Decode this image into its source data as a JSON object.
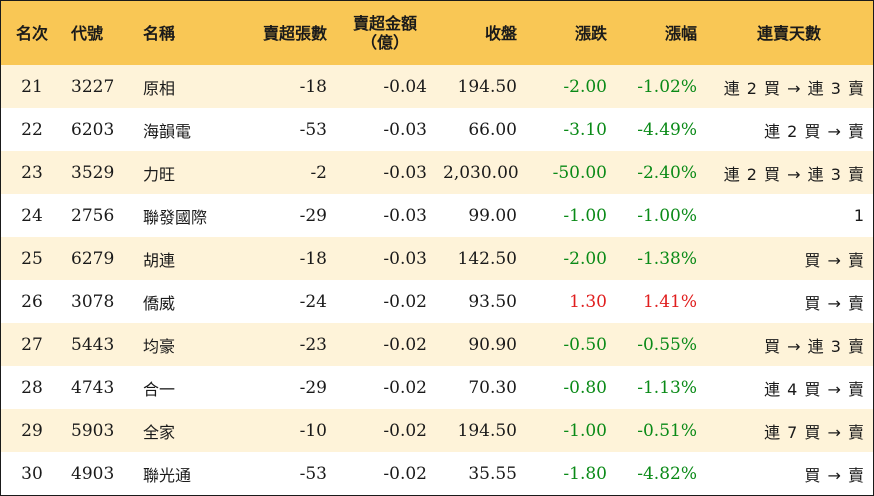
{
  "columns": {
    "rank": "名次",
    "code": "代號",
    "name": "名稱",
    "net_sell_volume": "賣超張數",
    "net_sell_amount_line1": "賣超金額",
    "net_sell_amount_line2": "（億）",
    "close": "收盤",
    "change": "漲跌",
    "change_pct": "漲幅",
    "streak": "連賣天數"
  },
  "colors": {
    "header_bg": "#f9c755",
    "row_alt_bg": "#fef3d9",
    "down": "#0a8a17",
    "up": "#e01e1e"
  },
  "rows": [
    {
      "rank": "21",
      "code": "3227",
      "name": "原相",
      "volume": "-18",
      "amount": "-0.04",
      "close": "194.50",
      "change": "-2.00",
      "pct": "-1.02%",
      "dir": "down",
      "streak": "連 2 買 → 連 3 賣"
    },
    {
      "rank": "22",
      "code": "6203",
      "name": "海韻電",
      "volume": "-53",
      "amount": "-0.03",
      "close": "66.00",
      "change": "-3.10",
      "pct": "-4.49%",
      "dir": "down",
      "streak": "連 2 買 → 賣"
    },
    {
      "rank": "23",
      "code": "3529",
      "name": "力旺",
      "volume": "-2",
      "amount": "-0.03",
      "close": "2,030.00",
      "change": "-50.00",
      "pct": "-2.40%",
      "dir": "down",
      "streak": "連 2 買 → 連 3 賣"
    },
    {
      "rank": "24",
      "code": "2756",
      "name": "聯發國際",
      "volume": "-29",
      "amount": "-0.03",
      "close": "99.00",
      "change": "-1.00",
      "pct": "-1.00%",
      "dir": "down",
      "streak": "1"
    },
    {
      "rank": "25",
      "code": "6279",
      "name": "胡連",
      "volume": "-18",
      "amount": "-0.03",
      "close": "142.50",
      "change": "-2.00",
      "pct": "-1.38%",
      "dir": "down",
      "streak": "買 → 賣"
    },
    {
      "rank": "26",
      "code": "3078",
      "name": "僑威",
      "volume": "-24",
      "amount": "-0.02",
      "close": "93.50",
      "change": "1.30",
      "pct": "1.41%",
      "dir": "up",
      "streak": "買 → 賣"
    },
    {
      "rank": "27",
      "code": "5443",
      "name": "均豪",
      "volume": "-23",
      "amount": "-0.02",
      "close": "90.90",
      "change": "-0.50",
      "pct": "-0.55%",
      "dir": "down",
      "streak": "買 → 連 3 賣"
    },
    {
      "rank": "28",
      "code": "4743",
      "name": "合一",
      "volume": "-29",
      "amount": "-0.02",
      "close": "70.30",
      "change": "-0.80",
      "pct": "-1.13%",
      "dir": "down",
      "streak": "連 4 買 → 賣"
    },
    {
      "rank": "29",
      "code": "5903",
      "name": "全家",
      "volume": "-10",
      "amount": "-0.02",
      "close": "194.50",
      "change": "-1.00",
      "pct": "-0.51%",
      "dir": "down",
      "streak": "連 7 買 → 賣"
    },
    {
      "rank": "30",
      "code": "4903",
      "name": "聯光通",
      "volume": "-53",
      "amount": "-0.02",
      "close": "35.55",
      "change": "-1.80",
      "pct": "-4.82%",
      "dir": "down",
      "streak": "買 → 賣"
    }
  ]
}
